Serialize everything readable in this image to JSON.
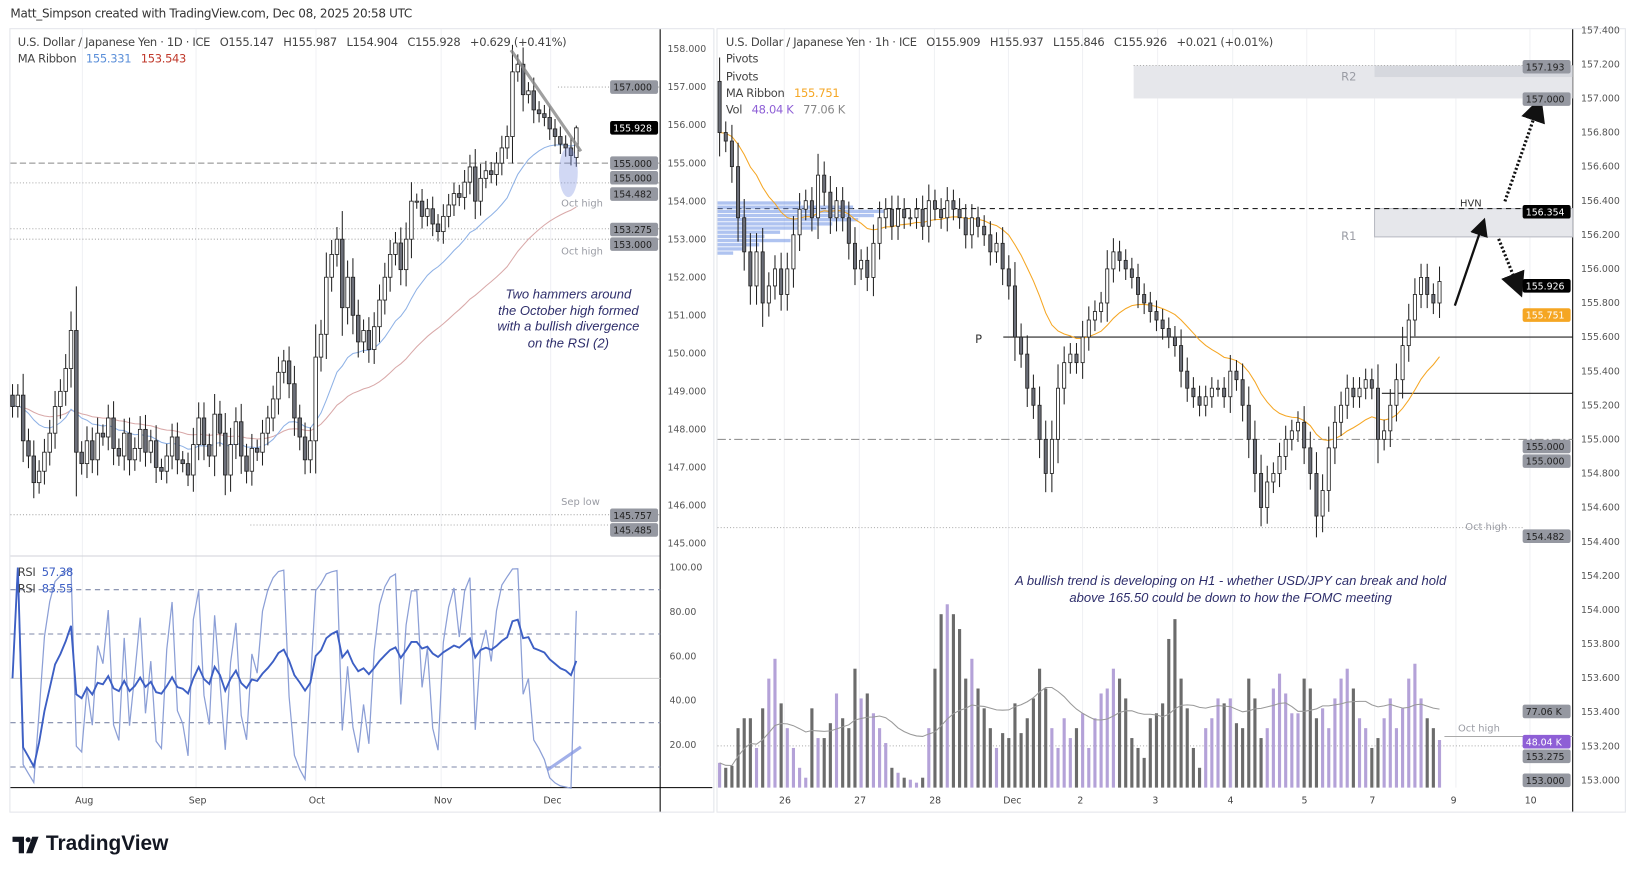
{
  "header": {
    "attribution": "Matt_Simpson created with TradingView.com, Dec 08, 2025 20:58 UTC"
  },
  "left": {
    "legend": {
      "symbol": "U.S. Dollar / Japanese Yen · 1D · ICE",
      "open": "O155.147",
      "high": "H155.987",
      "low": "L154.904",
      "close": "C155.928",
      "change": "+0.629 (+0.41%)",
      "ma_label": "MA Ribbon",
      "ma_fast": "155.331",
      "ma_slow": "153.543"
    },
    "rsi_legend": [
      {
        "label": "RSI",
        "value": "57.38"
      },
      {
        "label": "RSI",
        "value": "83.55"
      }
    ],
    "annotation": [
      "Two hammers around",
      "the October high formed",
      "with a bullish divergence",
      "on the RSI (2)"
    ],
    "level_labels": {
      "oct_high_1": "Oct high",
      "oct_high_2": "Oct high",
      "sep_low": "Sep low"
    }
  },
  "right": {
    "legend": {
      "symbol": "U.S. Dollar / Japanese Yen · 1h · ICE",
      "open": "O155.909",
      "high": "H155.937",
      "low": "L155.846",
      "close": "C155.926",
      "change": "+0.021 (+0.01%)",
      "pivots_1": "Pivots",
      "pivots_2": "Pivots",
      "ma_label": "MA Ribbon",
      "ma_value": "155.751",
      "vol_label": "Vol",
      "vol_value": "48.04 K",
      "vol_ma_value": "77.06 K"
    },
    "annotation": [
      "A bullish trend is developing on H1 - whether USD/JPY can break and hold",
      "above 165.50 could be down to how the FOMC meeting"
    ],
    "level_labels": {
      "r2": "R2",
      "r1": "R1",
      "p": "P",
      "hvn": "HVN",
      "oct_high_1": "Oct high",
      "oct_high_2": "Oct high"
    }
  },
  "footer": {
    "brand": "TradingView"
  },
  "colors": {
    "up_body": "#ffffff",
    "down_body": "#6b6e78",
    "ma_fast": "#8fb2e6",
    "ma_slow": "#d9a9a9",
    "ma_hourly": "#f5a623",
    "rsi_fast": "#3d5fc4",
    "rsi_slow": "#8c9fd6",
    "vol_up": "#b4a2d8",
    "vol_down": "#6b6b6b",
    "pivot_box": "#e6e7eb",
    "annotation": "#2e2e6b",
    "last_price": "#000000",
    "ma_badge": "#f5a623",
    "vol_badge": "#8e5fd6"
  },
  "chart_data": [
    {
      "type": "candlestick",
      "timeframe": "1D",
      "x_ticks": [
        "Aug",
        "Sep",
        "Oct",
        "Nov",
        "Dec"
      ],
      "y_ticks": [
        "158.000",
        "157.000",
        "156.000",
        "155.000",
        "154.000",
        "153.000",
        "152.000",
        "151.000",
        "150.000",
        "149.000",
        "148.000",
        "147.000",
        "146.000",
        "145.000"
      ],
      "price_badges": [
        {
          "v": "157.000",
          "kind": "gray"
        },
        {
          "v": "155.928",
          "kind": "last"
        },
        {
          "v": "155.000",
          "kind": "gray"
        },
        {
          "v": "155.000",
          "kind": "gray"
        },
        {
          "v": "154.482",
          "kind": "gray"
        },
        {
          "v": "153.275",
          "kind": "gray"
        },
        {
          "v": "153.000",
          "kind": "gray"
        },
        {
          "v": "145.757",
          "kind": "gray"
        },
        {
          "v": "145.485",
          "kind": "gray"
        }
      ],
      "last_ohlc": [
        155.147,
        155.987,
        154.904,
        155.928
      ],
      "close": [
        148.6,
        148.9,
        147.7,
        147.3,
        146.6,
        146.9,
        147.4,
        147.9,
        148.6,
        149.0,
        149.6,
        150.6,
        147.4,
        147.1,
        147.7,
        147.2,
        147.9,
        147.8,
        148.3,
        147.5,
        147.3,
        147.9,
        147.2,
        147.5,
        148.0,
        147.4,
        147.7,
        147.0,
        146.9,
        147.3,
        147.8,
        147.2,
        147.1,
        146.8,
        147.6,
        148.3,
        147.6,
        147.3,
        148.4,
        147.9,
        146.8,
        147.6,
        148.2,
        147.3,
        146.9,
        147.5,
        147.4,
        147.9,
        148.3,
        148.8,
        149.5,
        149.8,
        149.2,
        148.3,
        147.8,
        147.2,
        147.7,
        149.9,
        150.5,
        152.0,
        152.6,
        153.0,
        151.2,
        152.0,
        151.0,
        150.3,
        150.6,
        150.1,
        150.7,
        151.4,
        152.0,
        152.6,
        152.9,
        152.2,
        153.0,
        154.0,
        154.0,
        153.6,
        153.8,
        153.4,
        153.2,
        153.6,
        153.9,
        154.2,
        154.1,
        154.5,
        154.9,
        154.0,
        154.6,
        154.8,
        154.7,
        155.0,
        155.4,
        155.7,
        157.4,
        157.6,
        156.8,
        156.9,
        156.4,
        156.3,
        156.2,
        155.9,
        155.7,
        155.5,
        155.4,
        155.2,
        155.928
      ],
      "levels": {
        "dashed": 155.0,
        "dotted": [
          157.0,
          154.482,
          153.275,
          153.0,
          145.757,
          145.485
        ]
      },
      "rsi": {
        "periods": [
          14,
          2
        ],
        "y_ticks": [
          "100.00",
          "80.00",
          "60.00",
          "40.00",
          "20.00"
        ],
        "bands": [
          90,
          70,
          50,
          30,
          10
        ]
      },
      "moving_averages": {
        "fast": 20,
        "slow": 50
      }
    },
    {
      "type": "candlestick",
      "timeframe": "1h",
      "x_ticks": [
        "26",
        "27",
        "28",
        "Dec",
        "2",
        "3",
        "4",
        "5",
        "7",
        "9",
        "10"
      ],
      "y_ticks": [
        "157.400",
        "157.200",
        "157.000",
        "156.800",
        "156.600",
        "156.400",
        "156.200",
        "156.000",
        "155.800",
        "155.600",
        "155.400",
        "155.200",
        "155.000",
        "154.800",
        "154.600",
        "154.400",
        "154.200",
        "154.000",
        "153.800",
        "153.600",
        "153.400",
        "153.200",
        "153.000"
      ],
      "price_badges": [
        {
          "v": "157.193",
          "kind": "gray"
        },
        {
          "v": "157.000",
          "kind": "gray"
        },
        {
          "v": "156.354",
          "kind": "last"
        },
        {
          "v": "155.926",
          "kind": "last"
        },
        {
          "v": "155.751",
          "kind": "ma"
        },
        {
          "v": "155.000",
          "kind": "gray"
        },
        {
          "v": "155.000",
          "kind": "gray"
        },
        {
          "v": "154.482",
          "kind": "gray"
        },
        {
          "v": "153.275",
          "kind": "gray"
        },
        {
          "v": "153.000",
          "kind": "gray"
        }
      ],
      "volume_badges": [
        {
          "v": "77.06 K",
          "kind": "gray",
          "k": 77.06
        },
        {
          "v": "48.04 K",
          "kind": "vol",
          "k": 48.04
        }
      ],
      "close": [
        156.8,
        156.75,
        156.6,
        156.3,
        156.1,
        155.9,
        156.1,
        155.8,
        155.9,
        156.0,
        155.85,
        156.0,
        156.2,
        156.35,
        156.4,
        156.3,
        156.55,
        156.45,
        156.3,
        156.4,
        156.3,
        156.15,
        156.0,
        156.05,
        155.95,
        156.15,
        156.3,
        156.35,
        156.25,
        156.35,
        156.3,
        156.3,
        156.35,
        156.25,
        156.4,
        156.35,
        156.3,
        156.4,
        156.35,
        156.3,
        156.2,
        156.3,
        156.25,
        156.2,
        156.1,
        156.15,
        156.0,
        155.9,
        155.6,
        155.5,
        155.3,
        155.2,
        155.0,
        154.8,
        155.0,
        155.3,
        155.45,
        155.5,
        155.45,
        155.6,
        155.7,
        155.75,
        155.8,
        156.0,
        156.1,
        156.05,
        156.0,
        155.95,
        155.85,
        155.8,
        155.75,
        155.7,
        155.65,
        155.6,
        155.55,
        155.4,
        155.3,
        155.25,
        155.2,
        155.25,
        155.3,
        155.3,
        155.25,
        155.4,
        155.35,
        155.2,
        155.0,
        154.8,
        154.6,
        154.75,
        154.8,
        154.9,
        155.0,
        155.05,
        155.1,
        154.95,
        154.8,
        154.55,
        154.7,
        154.95,
        155.1,
        155.2,
        155.3,
        155.25,
        155.3,
        155.35,
        155.3,
        155.0,
        155.05,
        155.2,
        155.35,
        155.55,
        155.7,
        155.85,
        155.95,
        155.85,
        155.8,
        155.926
      ],
      "volume_k": [
        25,
        20,
        22,
        60,
        70,
        70,
        40,
        80,
        110,
        130,
        85,
        60,
        40,
        20,
        10,
        80,
        50,
        50,
        65,
        95,
        70,
        60,
        120,
        90,
        95,
        75,
        60,
        45,
        20,
        15,
        10,
        8,
        5,
        10,
        60,
        120,
        175,
        185,
        175,
        160,
        110,
        130,
        100,
        80,
        60,
        40,
        55,
        50,
        85,
        55,
        70,
        90,
        120,
        100,
        60,
        40,
        70,
        50,
        60,
        75,
        40,
        70,
        95,
        100,
        120,
        110,
        90,
        50,
        40,
        30,
        70,
        75,
        85,
        150,
        170,
        110,
        80,
        40,
        20,
        60,
        70,
        90,
        85,
        90,
        65,
        60,
        110,
        90,
        50,
        60,
        100,
        115,
        95,
        75,
        75,
        110,
        100,
        70,
        80,
        60,
        90,
        110,
        120,
        100,
        70,
        60,
        40,
        50,
        70,
        90,
        60,
        80,
        110,
        125,
        90,
        70,
        60,
        48.04
      ],
      "pivots": {
        "R2": [
          157.0,
          157.193
        ],
        "R1": [
          156.2,
          156.354
        ],
        "P": 155.6,
        "support": 155.27
      },
      "levels": {
        "hvn": 156.354,
        "dash_dot": 155.0,
        "oct_high": [
          154.482,
          153.275
        ]
      },
      "moving_average": 20,
      "volume_ma": 20
    }
  ]
}
